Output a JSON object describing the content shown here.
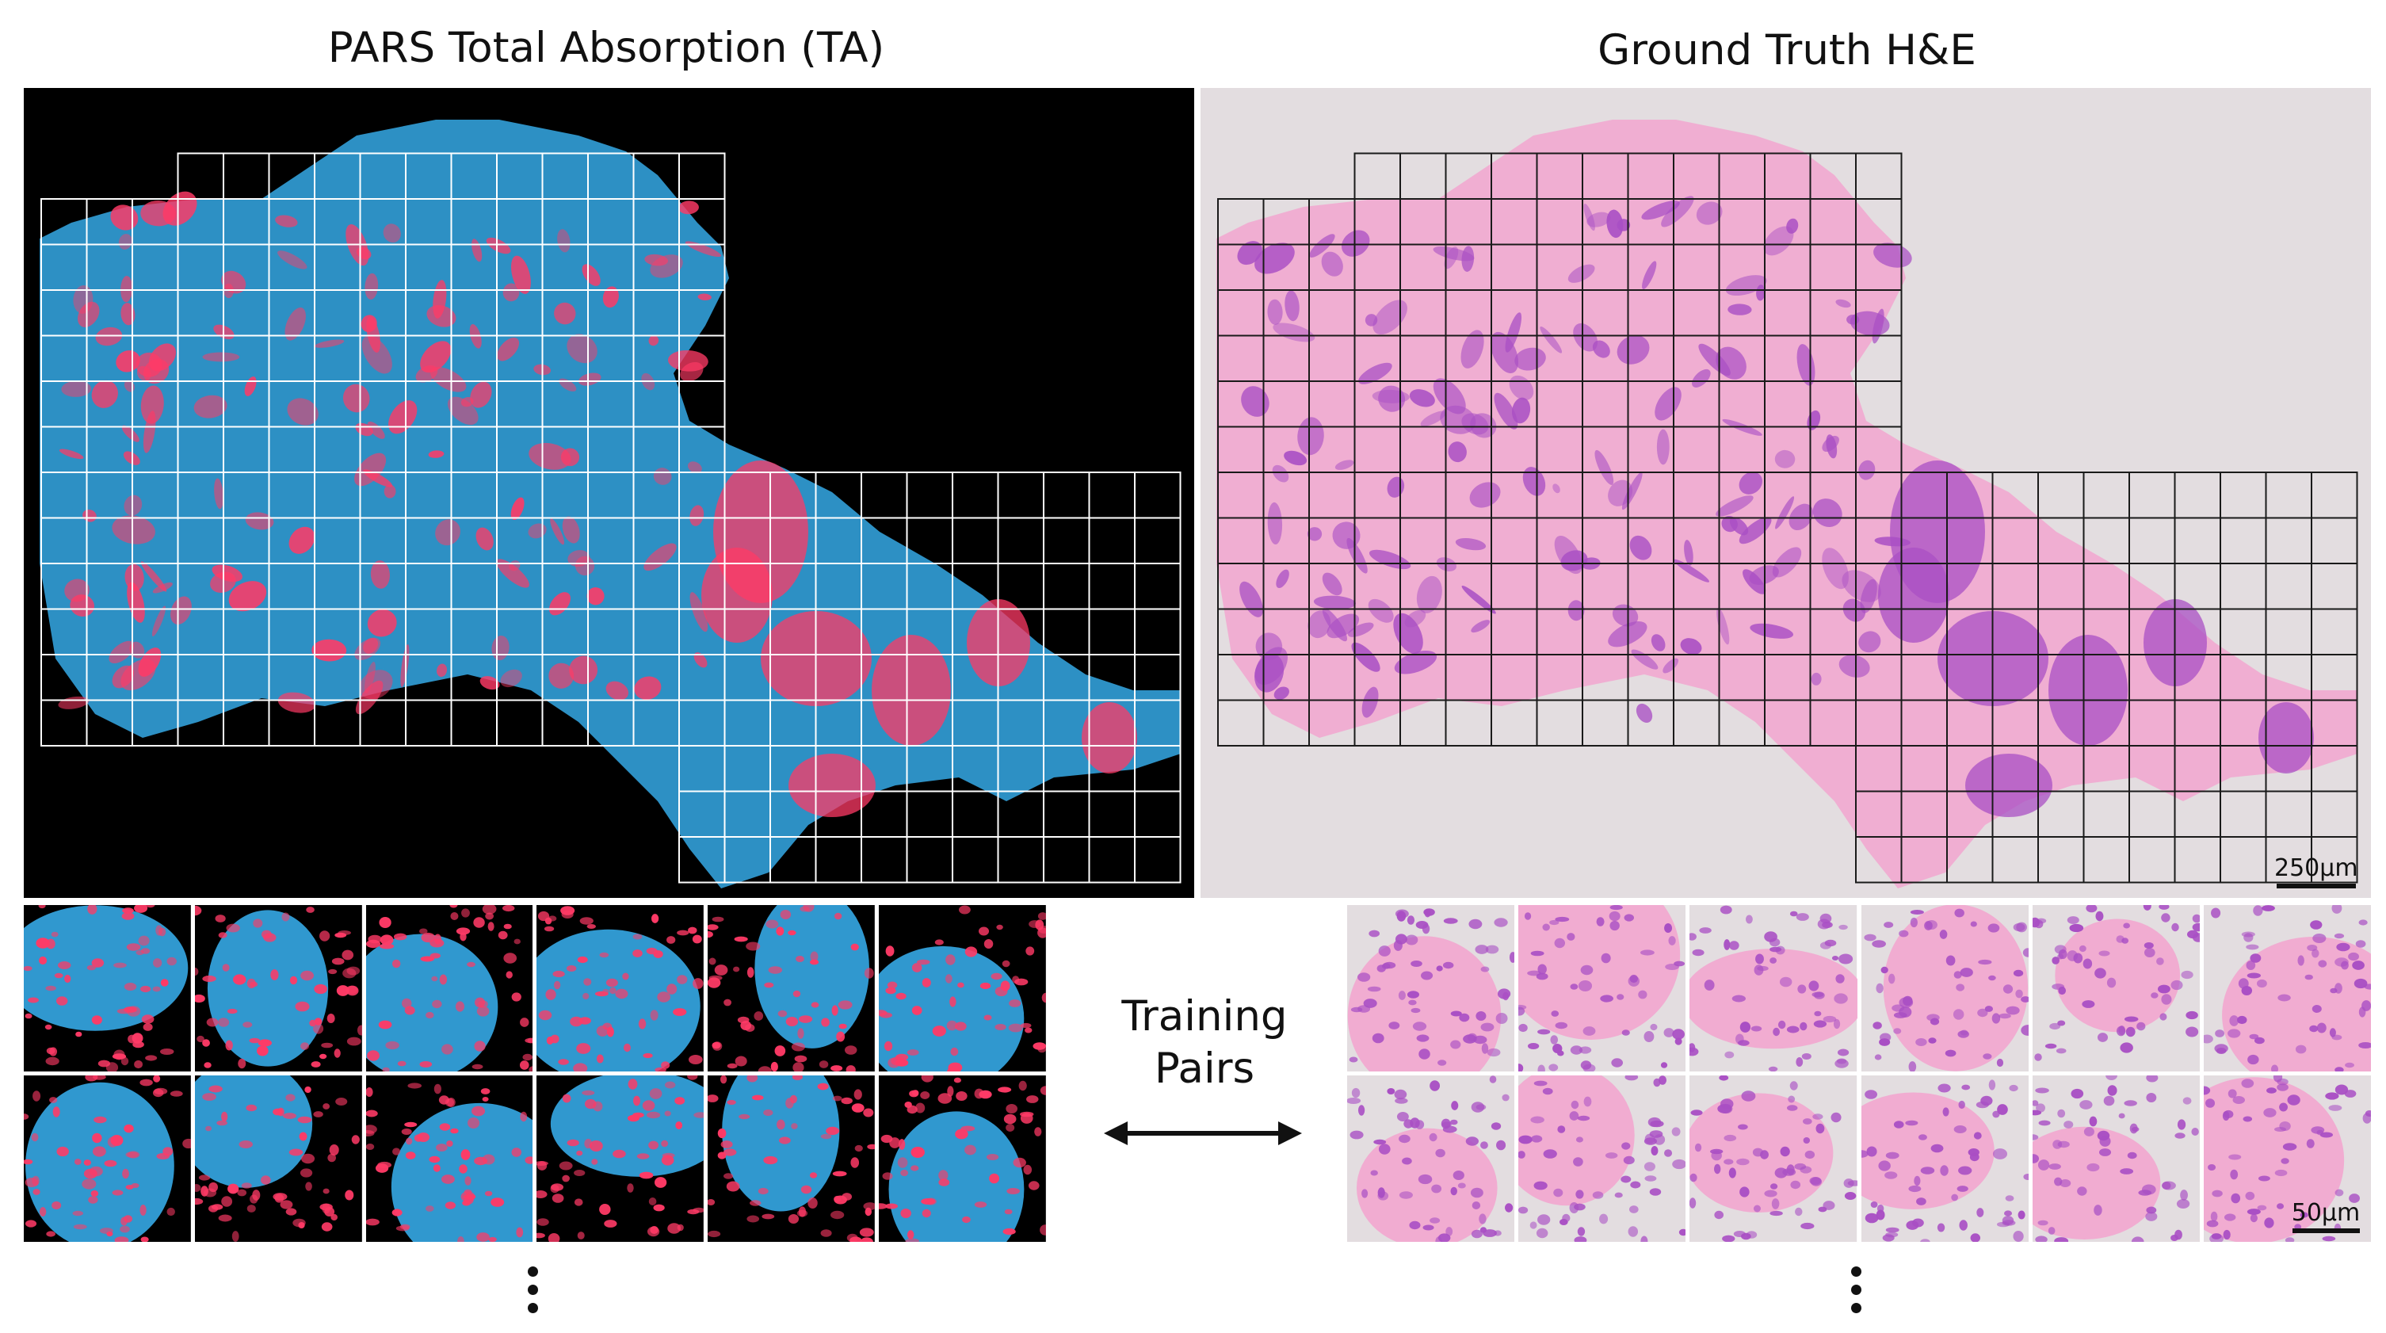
{
  "figure": {
    "left_title": "PARS Total Absorption (TA)",
    "right_title": "Ground Truth H&E",
    "center_label_line1": "Training",
    "center_label_line2": "Pairs",
    "scalebar_overview": "250µm",
    "scalebar_tiles": "50µm",
    "continuation_glyph": "⋮"
  },
  "colors": {
    "pars_background": "#000000",
    "pars_nuclei": "#ff3a66",
    "pars_stroma": "#35a9e6",
    "he_background": "#e3dde0",
    "he_stroma": "#f2a6cf",
    "he_nuclei": "#a94fc4",
    "grid_line_pars": "#ffffff",
    "grid_line_he": "#1a1a1a"
  },
  "tile_rows": 2,
  "tile_cols": 6
}
